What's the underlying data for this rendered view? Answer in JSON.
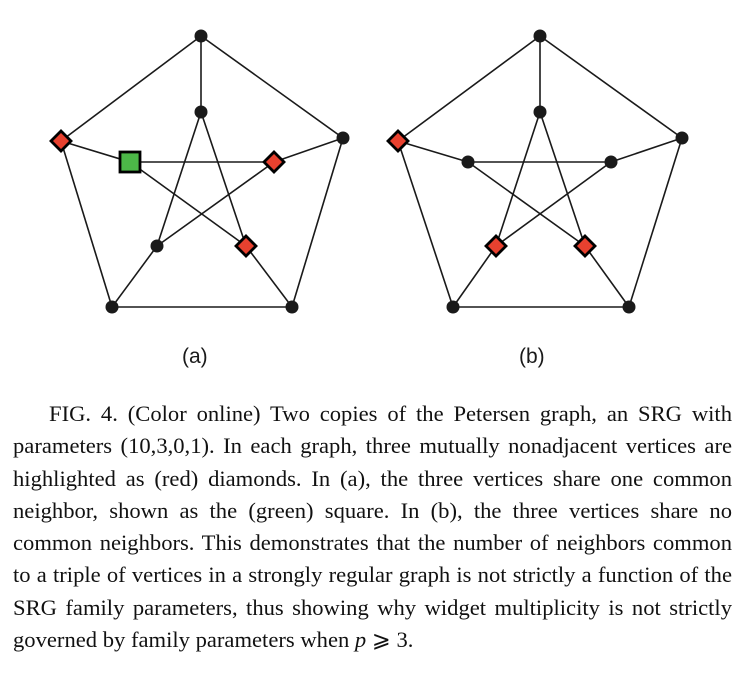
{
  "figure": {
    "panels": [
      {
        "label": "(a)",
        "graph": "Petersen graph",
        "highlight": {
          "diamond_vertices": [
            "outer-left",
            "inner-upper-right",
            "inner-lower-right"
          ],
          "square_vertices": [
            "inner-upper-left"
          ],
          "diamond_color": "#e8412f",
          "square_color": "#4cb848"
        }
      },
      {
        "label": "(b)",
        "graph": "Petersen graph",
        "highlight": {
          "diamond_vertices": [
            "outer-left",
            "inner-lower-left",
            "inner-lower-right"
          ],
          "square_vertices": [],
          "diamond_color": "#e8412f"
        }
      }
    ],
    "node_color": "#1a1a1a",
    "edge_color": "#1a1a1a"
  },
  "caption": {
    "lead": "FIG. 4. (Color online) Two copies of the Petersen graph, an SRG with parameters (10,3,0,1). In each graph, three mutually nonadjacent vertices are highlighted as (red) diamonds. In (a), the three vertices share one common neighbor, shown as the (green) square. In (b), the three vertices share no common neighbors. This demonstrates that the number of neighbors common to a triple of vertices in a strongly regular graph is not strictly a function of the SRG family parameters, thus showing why widget multiplicity is not strictly governed by family parameters when ",
    "var": "p",
    "tail": " ⩾ 3."
  }
}
